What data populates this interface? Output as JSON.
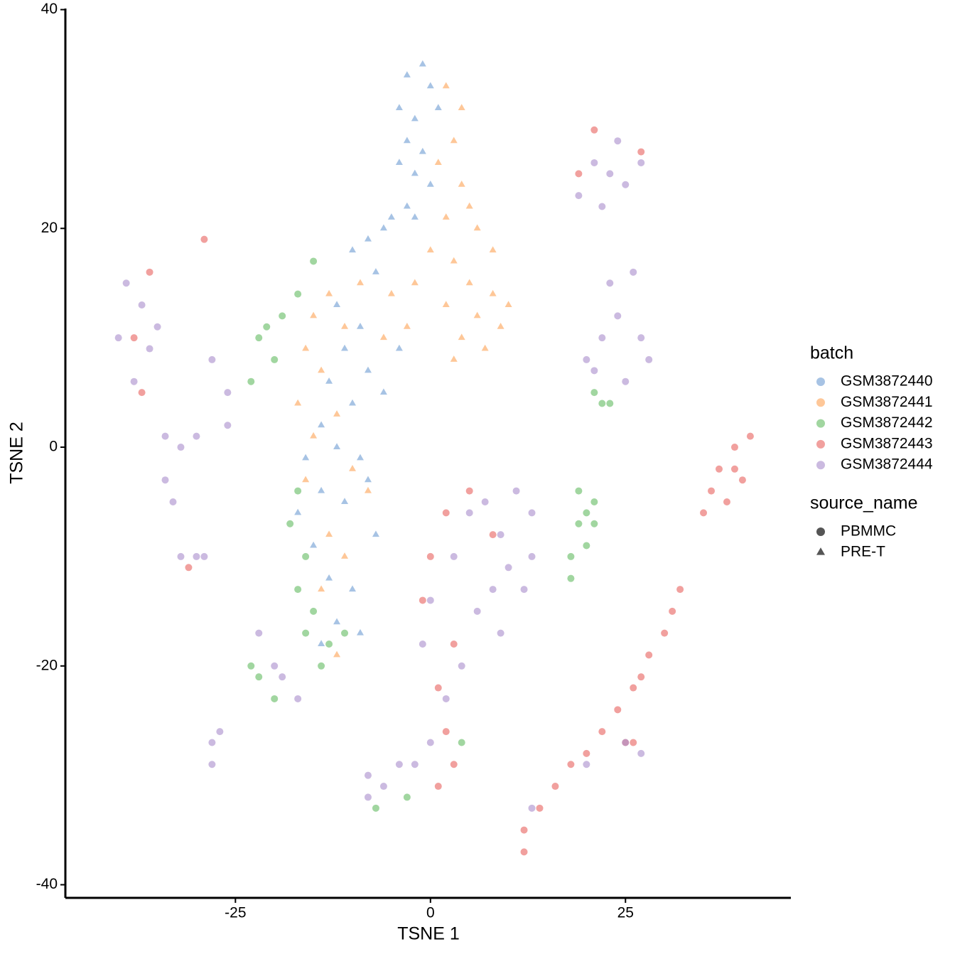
{
  "chart_data": {
    "type": "scatter",
    "xlabel": "TSNE 1",
    "ylabel": "TSNE 2",
    "xlim": [
      -46.8,
      46.2
    ],
    "ylim": [
      -41.2,
      40.1
    ],
    "xticks": [
      -25,
      0,
      25
    ],
    "yticks": [
      -40,
      -20,
      0,
      20,
      40
    ],
    "legend_title": "batch",
    "legend_position": "right",
    "shape_legend": {
      "title": "source_name",
      "items": [
        {
          "name": "PBMMC",
          "shape": "circle"
        },
        {
          "name": "PRE-T",
          "shape": "triangle"
        }
      ]
    },
    "series": [
      {
        "name": "GSM3872440",
        "color": "#6c9bd2",
        "shape": "triangle",
        "x": [
          -3,
          -1,
          0,
          -4,
          -2,
          1,
          -3,
          -1,
          -4,
          -2,
          0,
          -3,
          -5,
          -6,
          -2,
          -8,
          -10,
          -7,
          -12,
          -9,
          -11,
          -8,
          -13,
          -10,
          -14,
          -12,
          -16,
          -9,
          -14,
          -17,
          -11,
          -15,
          -13,
          -10,
          -12,
          -9,
          -14,
          -8,
          -6,
          -4,
          -7
        ],
        "y": [
          34,
          35,
          33,
          31,
          30,
          31,
          28,
          27,
          26,
          25,
          24,
          22,
          21,
          20,
          21,
          19,
          18,
          16,
          13,
          11,
          9,
          7,
          6,
          4,
          2,
          0,
          -1,
          -1,
          -4,
          -6,
          -5,
          -9,
          -12,
          -13,
          -16,
          -17,
          -18,
          -3,
          5,
          9,
          -8
        ]
      },
      {
        "name": "GSM3872441",
        "color": "#fda154",
        "shape": "triangle",
        "x": [
          2,
          4,
          3,
          1,
          4,
          5,
          6,
          8,
          3,
          5,
          8,
          10,
          2,
          6,
          9,
          4,
          7,
          3,
          -2,
          -5,
          -9,
          -13,
          -15,
          -11,
          -16,
          -14,
          -17,
          -12,
          -15,
          -10,
          -16,
          -13,
          -8,
          -11,
          -14,
          -12,
          -6,
          -3,
          0,
          2
        ],
        "y": [
          33,
          31,
          28,
          26,
          24,
          22,
          20,
          18,
          17,
          15,
          14,
          13,
          13,
          12,
          11,
          10,
          9,
          8,
          15,
          14,
          15,
          14,
          12,
          11,
          9,
          7,
          4,
          3,
          1,
          -2,
          -3,
          -8,
          -4,
          -10,
          -13,
          -19,
          10,
          11,
          18,
          21
        ]
      },
      {
        "name": "GSM3872442",
        "color": "#62bb60",
        "shape": "circle",
        "x": [
          19,
          20,
          21,
          19,
          20,
          18,
          21,
          22,
          21,
          23,
          -17,
          -18,
          -16,
          -17,
          -15,
          -16,
          -13,
          -14,
          -11,
          -21,
          -22,
          -19,
          -20,
          -17,
          -15,
          -22,
          -20,
          -23,
          4,
          -7,
          -3,
          18,
          -23
        ],
        "y": [
          -4,
          -6,
          -5,
          -7,
          -9,
          -10,
          -7,
          4,
          5,
          4,
          -4,
          -7,
          -10,
          -13,
          -15,
          -17,
          -18,
          -20,
          -17,
          11,
          10,
          12,
          8,
          14,
          17,
          -21,
          -23,
          -20,
          -27,
          -33,
          -32,
          -12,
          6
        ]
      },
      {
        "name": "GSM3872443",
        "color": "#e8615d",
        "shape": "circle",
        "x": [
          37,
          39,
          41,
          40,
          38,
          36,
          35,
          39,
          32,
          31,
          30,
          28,
          27,
          26,
          24,
          22,
          25,
          20,
          18,
          16,
          14,
          12,
          12,
          26,
          2,
          0,
          -1,
          3,
          1,
          2,
          3,
          1,
          5,
          8,
          -36,
          -38,
          -37,
          -31,
          -29,
          21,
          27,
          19
        ],
        "y": [
          -2,
          0,
          1,
          -3,
          -5,
          -4,
          -6,
          -2,
          -13,
          -15,
          -17,
          -19,
          -21,
          -22,
          -24,
          -26,
          -27,
          -28,
          -29,
          -31,
          -33,
          -35,
          -37,
          -27,
          -6,
          -10,
          -14,
          -18,
          -22,
          -26,
          -29,
          -31,
          -4,
          -8,
          16,
          10,
          5,
          -11,
          19,
          29,
          27,
          25
        ]
      },
      {
        "name": "GSM3872444",
        "color": "#a88ccc",
        "shape": "circle",
        "x": [
          -39,
          -37,
          -40,
          -36,
          -38,
          -35,
          -34,
          -32,
          -30,
          -26,
          -26,
          -28,
          -33,
          -34,
          -32,
          -30,
          -22,
          -20,
          -19,
          -17,
          -28,
          -28,
          -27,
          -8,
          -6,
          -8,
          -4,
          -2,
          0,
          2,
          -1,
          0,
          3,
          5,
          7,
          9,
          11,
          13,
          10,
          8,
          12,
          6,
          9,
          4,
          13,
          20,
          22,
          24,
          27,
          23,
          26,
          21,
          25,
          28,
          19,
          22,
          21,
          24,
          25,
          27,
          23,
          25,
          27,
          20,
          13,
          -29
        ],
        "y": [
          15,
          13,
          10,
          9,
          6,
          11,
          1,
          0,
          1,
          5,
          2,
          8,
          -5,
          -3,
          -10,
          -10,
          -17,
          -20,
          -21,
          -23,
          -27,
          -29,
          -26,
          -30,
          -31,
          -32,
          -29,
          -29,
          -27,
          -23,
          -18,
          -14,
          -10,
          -6,
          -5,
          -8,
          -4,
          -6,
          -11,
          -13,
          -13,
          -15,
          -17,
          -20,
          -10,
          8,
          10,
          12,
          10,
          15,
          16,
          7,
          6,
          8,
          23,
          22,
          26,
          28,
          24,
          26,
          25,
          -27,
          -28,
          -29,
          -33,
          -10
        ]
      }
    ]
  }
}
